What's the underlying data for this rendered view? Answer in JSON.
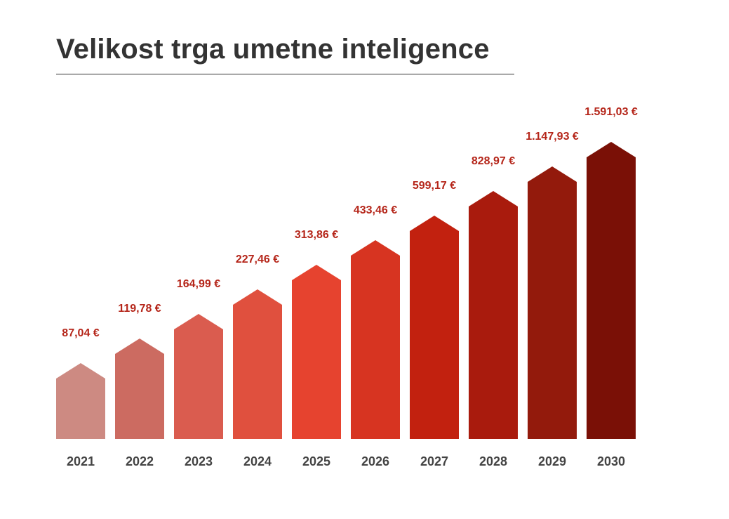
{
  "title": "Velikost trga umetne inteligence",
  "chart_data": {
    "type": "bar",
    "title": "Velikost trga umetne inteligence",
    "xlabel": "",
    "ylabel": "",
    "grid": false,
    "legend": "none",
    "categories": [
      "2021",
      "2022",
      "2023",
      "2024",
      "2025",
      "2026",
      "2027",
      "2028",
      "2029",
      "2030"
    ],
    "values": [
      87.04,
      119.78,
      164.99,
      227.46,
      313.86,
      433.46,
      599.17,
      828.97,
      1147.93,
      1591.03
    ],
    "value_labels": [
      "87,04 €",
      "119,78 €",
      "164,99 €",
      "227,46 €",
      "313,86 €",
      "433,46 €",
      "599,17 €",
      "828,97 €",
      "1.147,93 €",
      "1.591,03 €"
    ],
    "colors": [
      "#cd8a82",
      "#cc6b61",
      "#da5c4f",
      "#e0503e",
      "#e6432f",
      "#d73421",
      "#c2210f",
      "#a91b0d",
      "#931a0c",
      "#7a1006"
    ],
    "label_color": "#b5261a",
    "mark_shape": "arrow"
  }
}
